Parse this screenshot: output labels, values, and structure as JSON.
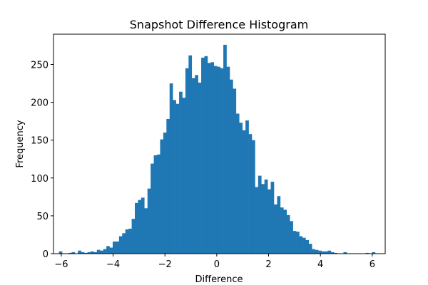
{
  "chart_data": {
    "type": "bar",
    "title": "Snapshot Difference Histogram",
    "xlabel": "Difference",
    "ylabel": "Frequency",
    "xlim": [
      -6.3,
      6.5
    ],
    "ylim": [
      0,
      290
    ],
    "xticks": [
      -6,
      -4,
      -2,
      0,
      2,
      4,
      6
    ],
    "yticks": [
      0,
      50,
      100,
      150,
      200,
      250
    ],
    "grid": false,
    "bar_color": "#1f77b4",
    "bin_width": 0.122,
    "bins_start": [
      -6.09,
      -5.968,
      -5.846,
      -5.724,
      -5.602,
      -5.48,
      -5.358,
      -5.236,
      -5.114,
      -4.992,
      -4.87,
      -4.748,
      -4.626,
      -4.504,
      -4.382,
      -4.26,
      -4.138,
      -4.016,
      -3.894,
      -3.772,
      -3.65,
      -3.528,
      -3.406,
      -3.284,
      -3.162,
      -3.04,
      -2.918,
      -2.796,
      -2.674,
      -2.552,
      -2.43,
      -2.308,
      -2.186,
      -2.064,
      -1.942,
      -1.82,
      -1.698,
      -1.576,
      -1.454,
      -1.332,
      -1.21,
      -1.088,
      -0.966,
      -0.844,
      -0.722,
      -0.6,
      -0.478,
      -0.356,
      -0.234,
      -0.112,
      0.01,
      0.132,
      0.254,
      0.376,
      0.498,
      0.62,
      0.742,
      0.864,
      0.986,
      1.108,
      1.23,
      1.352,
      1.474,
      1.596,
      1.718,
      1.84,
      1.962,
      2.084,
      2.206,
      2.328,
      2.45,
      2.572,
      2.694,
      2.816,
      2.938,
      3.06,
      3.182,
      3.304,
      3.426,
      3.548,
      3.67,
      3.792,
      3.914,
      4.036,
      4.158,
      4.28,
      4.402,
      4.524,
      4.646,
      4.768,
      4.89,
      5.012,
      5.134,
      5.256,
      5.378,
      5.5,
      5.622,
      5.744,
      5.866,
      5.988
    ],
    "counts": [
      3,
      0,
      0,
      1,
      2,
      0,
      4,
      2,
      1,
      2,
      3,
      2,
      5,
      4,
      6,
      10,
      8,
      16,
      16,
      23,
      27,
      32,
      33,
      46,
      67,
      71,
      74,
      60,
      86,
      119,
      130,
      131,
      151,
      160,
      178,
      225,
      203,
      198,
      214,
      206,
      245,
      262,
      232,
      236,
      226,
      259,
      261,
      252,
      253,
      248,
      247,
      245,
      276,
      247,
      230,
      218,
      185,
      173,
      163,
      176,
      158,
      150,
      88,
      103,
      92,
      98,
      85,
      95,
      65,
      76,
      61,
      58,
      51,
      43,
      30,
      29,
      23,
      21,
      18,
      13,
      6,
      5,
      4,
      3,
      3,
      4,
      2,
      1,
      0,
      0,
      2,
      0,
      0,
      0,
      0,
      0,
      0,
      1,
      0,
      2
    ]
  }
}
